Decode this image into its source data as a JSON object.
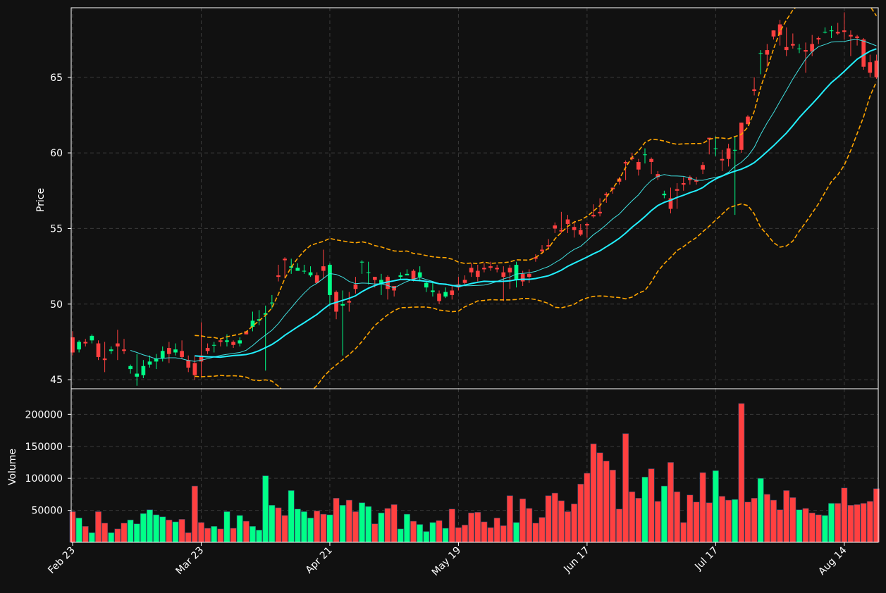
{
  "colors": {
    "background": "#111111",
    "up": "#00ff88",
    "down": "#ff4040",
    "bollinger": "#ffa500",
    "sma_fast": "#40e0e0",
    "sma_slow": "#22f0ff",
    "grid": "#3a3a3a",
    "text": "#ffffff"
  },
  "chart_data": {
    "type": "candlestick",
    "grid": true,
    "price_panel": {
      "ylabel": "Price",
      "ylim": [
        44.4,
        69.6
      ],
      "yticks": [
        45,
        50,
        55,
        60,
        65
      ]
    },
    "volume_panel": {
      "ylabel": "Volume",
      "ylim": [
        0,
        240000
      ],
      "yticks": [
        50000,
        100000,
        150000,
        200000
      ]
    },
    "x_ticks": [
      {
        "label": "Feb 23",
        "index": 0
      },
      {
        "label": "Mar 23",
        "index": 20
      },
      {
        "label": "Apr 21",
        "index": 40
      },
      {
        "label": "May 19",
        "index": 60
      },
      {
        "label": "Jun 17",
        "index": 80
      },
      {
        "label": "Jul 17",
        "index": 100
      },
      {
        "label": "Aug 14",
        "index": 120
      }
    ],
    "close": [
      46.8,
      47.5,
      47.4,
      47.9,
      46.5,
      46.3,
      47.0,
      47.2,
      46.9,
      45.9,
      45.4,
      45.9,
      46.2,
      46.4,
      46.9,
      46.7,
      47.0,
      46.5,
      45.8,
      45.3,
      46.2,
      46.9,
      47.3,
      47.5,
      47.6,
      47.3,
      47.6,
      48.0,
      48.9,
      49.0,
      49.4,
      50.1,
      51.8,
      52.9,
      52.5,
      52.4,
      52.2,
      52.1,
      51.4,
      52.2,
      52.6,
      49.5,
      50.0,
      50.1,
      51.0,
      52.8,
      52.1,
      51.6,
      51.6,
      51.0,
      50.9,
      51.9,
      52.0,
      51.6,
      52.1,
      51.4,
      50.9,
      50.2,
      50.8,
      50.6,
      51.1,
      51.4,
      52.1,
      51.8,
      52.3,
      52.4,
      52.3,
      51.8,
      52.1,
      52.6,
      51.5,
      51.8,
      53.0,
      53.5,
      53.8,
      55.0,
      54.8,
      55.3,
      54.9,
      54.6,
      55.2,
      55.8,
      56.0,
      57.2,
      57.6,
      58.1,
      59.3,
      59.6,
      58.9,
      59.9,
      59.4,
      58.4,
      57.3,
      56.3,
      57.5,
      57.9,
      58.2,
      58.1,
      58.9,
      60.9,
      60.3,
      59.5,
      59.6,
      60.2,
      60.2,
      61.9,
      64.1,
      66.6,
      66.5,
      67.7,
      67.8,
      66.8,
      67.1,
      66.9,
      66.7,
      66.7,
      67.5,
      68.0,
      68.1,
      67.9,
      68.0,
      67.7,
      67.6,
      65.7,
      65.3,
      65.0
    ],
    "open": [
      47.8,
      47.0,
      47.5,
      47.6,
      47.4,
      46.4,
      46.9,
      47.4,
      47.0,
      45.7,
      45.2,
      45.3,
      46.0,
      46.2,
      46.4,
      47.1,
      46.8,
      46.9,
      46.3,
      46.1,
      46.6,
      47.1,
      47.3,
      47.6,
      47.5,
      47.5,
      47.4,
      48.2,
      48.5,
      48.9,
      49.3,
      50.1,
      51.9,
      53.0,
      52.4,
      52.2,
      52.2,
      51.9,
      51.9,
      52.5,
      50.6,
      50.8,
      49.9,
      50.2,
      51.3,
      52.8,
      52.1,
      51.8,
      51.3,
      51.8,
      51.2,
      51.8,
      51.9,
      52.2,
      51.8,
      51.1,
      50.8,
      50.7,
      50.5,
      50.9,
      51.3,
      51.6,
      52.4,
      52.2,
      52.4,
      52.5,
      52.4,
      52.1,
      52.4,
      51.6,
      52.0,
      52.0,
      53.1,
      53.6,
      53.9,
      55.2,
      54.9,
      55.6,
      55.1,
      54.9,
      55.3,
      55.9,
      56.1,
      57.3,
      57.7,
      58.3,
      59.4,
      59.7,
      59.4,
      59.9,
      59.6,
      58.6,
      57.2,
      57.0,
      57.6,
      58.0,
      58.4,
      58.2,
      59.2,
      61.0,
      60.3,
      59.6,
      60.3,
      60.2,
      62.0,
      62.4,
      64.2,
      66.6,
      66.8,
      68.1,
      68.5,
      67.0,
      67.2,
      66.9,
      66.8,
      67.2,
      67.6,
      68.0,
      68.1,
      68.0,
      68.1,
      67.8,
      67.7,
      67.5,
      66.0,
      66.1
    ],
    "high": [
      48.2,
      47.6,
      47.7,
      48.0,
      47.6,
      47.5,
      47.2,
      48.3,
      47.7,
      46.0,
      46.7,
      46.3,
      46.6,
      46.7,
      47.2,
      47.5,
      47.4,
      47.6,
      46.6,
      46.6,
      48.8,
      47.4,
      47.5,
      47.7,
      48.0,
      47.6,
      47.8,
      48.2,
      49.5,
      49.6,
      49.9,
      50.6,
      52.6,
      53.1,
      53.0,
      52.7,
      52.6,
      52.5,
      52.1,
      53.6,
      52.7,
      50.9,
      50.9,
      50.8,
      51.8,
      52.9,
      52.8,
      51.8,
      52.0,
      51.9,
      51.1,
      52.1,
      52.3,
      52.3,
      52.5,
      51.5,
      51.4,
      50.9,
      51.1,
      51.2,
      51.8,
      51.9,
      52.7,
      52.6,
      52.7,
      52.8,
      52.6,
      52.5,
      52.6,
      52.8,
      52.2,
      52.3,
      53.3,
      53.9,
      54.3,
      55.4,
      56.1,
      55.9,
      55.5,
      55.3,
      55.4,
      56.6,
      57.0,
      57.4,
      57.7,
      58.4,
      59.5,
      60.0,
      59.6,
      60.3,
      59.7,
      58.8,
      57.5,
      57.7,
      58.0,
      58.4,
      58.5,
      58.4,
      59.4,
      61.0,
      61.1,
      60.2,
      60.6,
      61.1,
      62.0,
      62.5,
      65.0,
      66.8,
      67.2,
      68.1,
      68.8,
      68.3,
      67.9,
      67.2,
      67.3,
      67.8,
      67.7,
      68.3,
      68.4,
      68.6,
      69.3,
      68.1,
      67.8,
      67.6,
      66.5,
      66.5
    ],
    "low": [
      46.6,
      46.8,
      47.2,
      47.4,
      46.3,
      45.5,
      46.7,
      46.3,
      46.7,
      45.4,
      44.6,
      45.1,
      45.8,
      45.7,
      46.2,
      46.1,
      46.6,
      46.4,
      45.5,
      45.0,
      45.2,
      46.7,
      46.8,
      47.2,
      47.2,
      47.1,
      47.2,
      48.0,
      48.2,
      48.6,
      45.6,
      49.7,
      51.5,
      51.7,
      52.0,
      52.2,
      52.0,
      51.8,
      51.4,
      51.7,
      49.9,
      49.0,
      46.6,
      49.5,
      50.7,
      52.0,
      51.3,
      51.1,
      50.6,
      50.3,
      50.5,
      51.6,
      51.9,
      51.5,
      51.5,
      50.8,
      50.5,
      50.0,
      50.4,
      50.3,
      50.9,
      51.3,
      51.8,
      51.5,
      52.1,
      52.2,
      52.1,
      50.2,
      51.0,
      51.1,
      51.2,
      51.4,
      52.8,
      53.3,
      53.6,
      54.7,
      54.7,
      54.7,
      54.4,
      54.5,
      54.4,
      55.7,
      55.8,
      56.7,
      57.3,
      57.9,
      58.2,
      59.5,
      58.5,
      59.3,
      58.6,
      58.2,
      57.0,
      56.0,
      56.3,
      57.5,
      57.9,
      57.9,
      58.6,
      59.9,
      59.8,
      58.8,
      59.1,
      55.9,
      60.0,
      61.9,
      63.8,
      65.2,
      65.7,
      67.5,
      67.1,
      66.4,
      66.9,
      66.6,
      65.3,
      66.4,
      67.2,
      67.9,
      67.6,
      67.8,
      67.5,
      66.4,
      67.1,
      65.5,
      65.0,
      64.9
    ],
    "volume": [
      48000,
      38000,
      25000,
      15000,
      48000,
      30000,
      15000,
      21000,
      30000,
      35000,
      29000,
      45000,
      51000,
      43000,
      40000,
      35000,
      32000,
      36000,
      15000,
      88000,
      31000,
      22000,
      25000,
      21000,
      48000,
      22000,
      42000,
      33000,
      25000,
      19000,
      104000,
      58000,
      54000,
      42000,
      81000,
      52000,
      48000,
      38000,
      49000,
      44000,
      43000,
      69000,
      58000,
      66000,
      48000,
      62000,
      56000,
      29000,
      46000,
      53000,
      59000,
      21000,
      44000,
      33000,
      28000,
      17000,
      31000,
      34000,
      22000,
      52000,
      23000,
      27000,
      46000,
      47000,
      32000,
      23000,
      38000,
      26000,
      73000,
      31000,
      68000,
      53000,
      30000,
      39000,
      73000,
      77000,
      65000,
      48000,
      60000,
      91000,
      108000,
      154000,
      140000,
      127000,
      113000,
      52000,
      170000,
      79000,
      69000,
      102000,
      115000,
      64000,
      88000,
      125000,
      79000,
      31000,
      74000,
      63000,
      109000,
      62000,
      112000,
      72000,
      66000,
      67000,
      217000,
      63000,
      69000,
      100000,
      75000,
      66000,
      51000,
      81000,
      70000,
      51000,
      53000,
      46000,
      43000,
      42000,
      61000,
      61000,
      85000,
      58000,
      59000,
      61000,
      64000,
      84000
    ]
  }
}
